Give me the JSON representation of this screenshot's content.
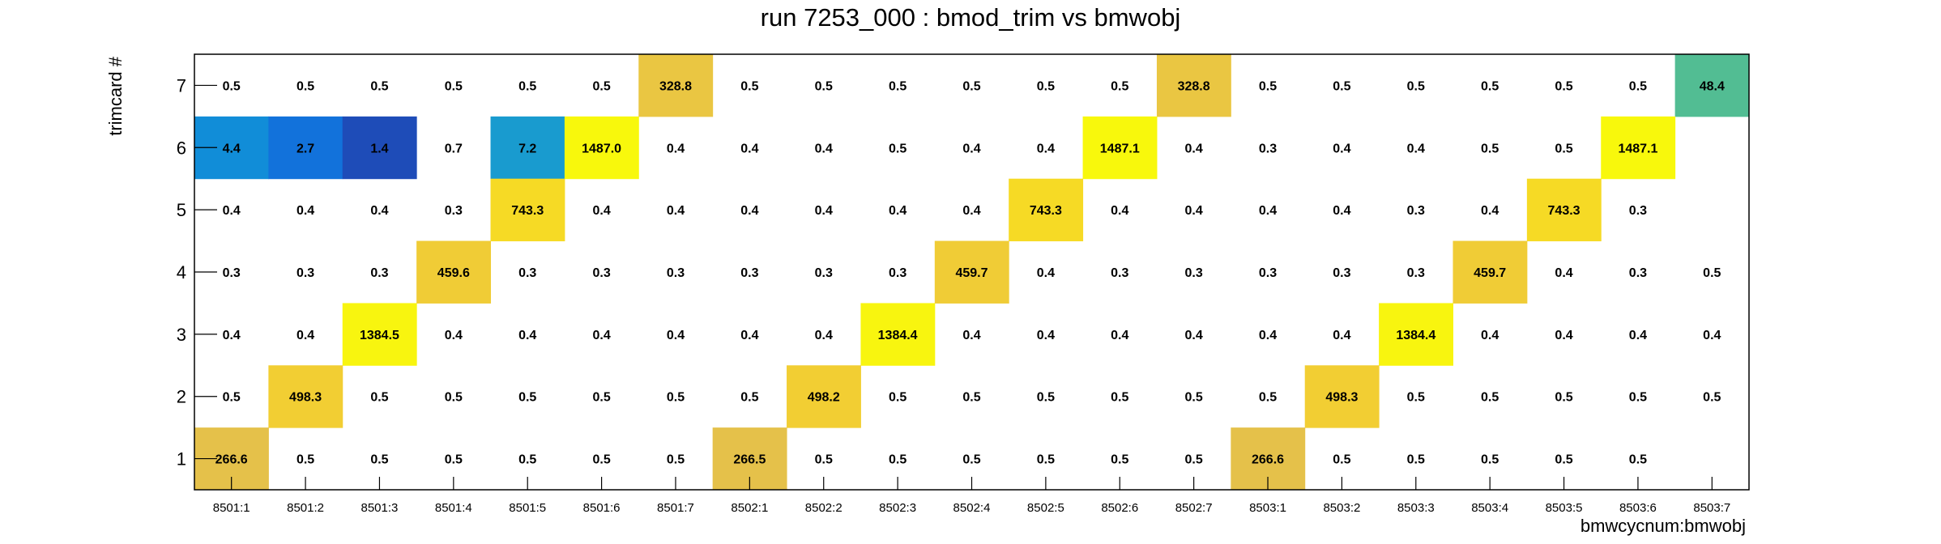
{
  "chart_data": {
    "type": "heatmap",
    "title": "run 7253_000 : bmod_trim vs bmwobj",
    "xlabel": "bmwcycnum:bmwobj",
    "ylabel": "trimcard #",
    "x_categories": [
      "8501:1",
      "8501:2",
      "8501:3",
      "8501:4",
      "8501:5",
      "8501:6",
      "8501:7",
      "8502:1",
      "8502:2",
      "8502:3",
      "8502:4",
      "8502:5",
      "8502:6",
      "8502:7",
      "8503:1",
      "8503:2",
      "8503:3",
      "8503:4",
      "8503:5",
      "8503:6",
      "8503:7"
    ],
    "y_categories": [
      "1",
      "2",
      "3",
      "4",
      "5",
      "6",
      "7"
    ],
    "rows": [
      {
        "y": "7",
        "values": [
          "0.5",
          "0.5",
          "0.5",
          "0.5",
          "0.5",
          "0.5",
          "328.8",
          "0.5",
          "0.5",
          "0.5",
          "0.5",
          "0.5",
          "0.5",
          "328.8",
          "0.5",
          "0.5",
          "0.5",
          "0.5",
          "0.5",
          "0.5",
          "48.4"
        ]
      },
      {
        "y": "6",
        "values": [
          "4.4",
          "2.7",
          "1.4",
          "0.7",
          "7.2",
          "1487.0",
          "0.4",
          "0.4",
          "0.4",
          "0.5",
          "0.4",
          "0.4",
          "1487.1",
          "0.4",
          "0.3",
          "0.4",
          "0.4",
          "0.5",
          "0.5",
          "1487.1",
          ""
        ]
      },
      {
        "y": "5",
        "values": [
          "0.4",
          "0.4",
          "0.4",
          "0.3",
          "743.3",
          "0.4",
          "0.4",
          "0.4",
          "0.4",
          "0.4",
          "0.4",
          "743.3",
          "0.4",
          "0.4",
          "0.4",
          "0.4",
          "0.3",
          "0.4",
          "743.3",
          "0.3",
          ""
        ]
      },
      {
        "y": "4",
        "values": [
          "0.3",
          "0.3",
          "0.3",
          "459.6",
          "0.3",
          "0.3",
          "0.3",
          "0.3",
          "0.3",
          "0.3",
          "459.7",
          "0.4",
          "0.3",
          "0.3",
          "0.3",
          "0.3",
          "0.3",
          "459.7",
          "0.4",
          "0.3",
          "0.5"
        ]
      },
      {
        "y": "3",
        "values": [
          "0.4",
          "0.4",
          "1384.5",
          "0.4",
          "0.4",
          "0.4",
          "0.4",
          "0.4",
          "0.4",
          "1384.4",
          "0.4",
          "0.4",
          "0.4",
          "0.4",
          "0.4",
          "0.4",
          "1384.4",
          "0.4",
          "0.4",
          "0.4",
          "0.4"
        ]
      },
      {
        "y": "2",
        "values": [
          "0.5",
          "498.3",
          "0.5",
          "0.5",
          "0.5",
          "0.5",
          "0.5",
          "0.5",
          "498.2",
          "0.5",
          "0.5",
          "0.5",
          "0.5",
          "0.5",
          "0.5",
          "498.3",
          "0.5",
          "0.5",
          "0.5",
          "0.5",
          "0.5"
        ]
      },
      {
        "y": "1",
        "values": [
          "266.6",
          "0.5",
          "0.5",
          "0.5",
          "0.5",
          "0.5",
          "0.5",
          "266.5",
          "0.5",
          "0.5",
          "0.5",
          "0.5",
          "0.5",
          "0.5",
          "266.6",
          "0.5",
          "0.5",
          "0.5",
          "0.5",
          "0.5",
          ""
        ]
      }
    ],
    "colorscale": {
      "type": "log",
      "low_colors": [
        "#27389c",
        "#1366dc",
        "#1190d8",
        "#1fa4c8"
      ],
      "mid_color": "#52bd93",
      "high_colors": [
        "#e4c04c",
        "#f6d22c",
        "#f8f80c"
      ]
    },
    "grid": false,
    "legend": "none"
  }
}
